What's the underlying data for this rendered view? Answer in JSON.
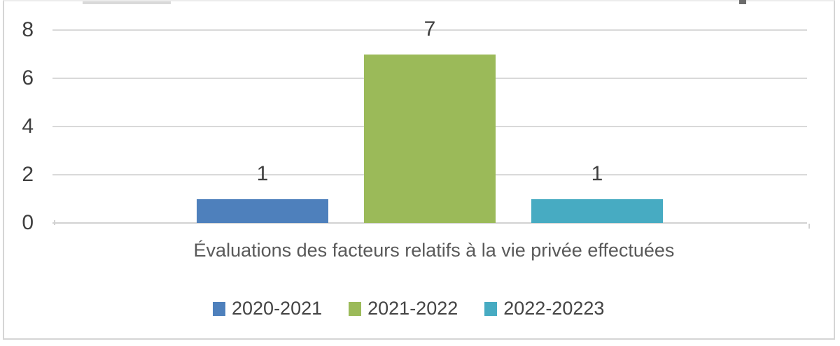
{
  "chart_data": {
    "type": "bar",
    "categories": [
      "Évaluations des facteurs relatifs à la vie privée effectuées"
    ],
    "series": [
      {
        "name": "2020-2021",
        "values": [
          1
        ],
        "color": "#4e80bc"
      },
      {
        "name": "2021-2022",
        "values": [
          7
        ],
        "color": "#9bba59"
      },
      {
        "name": "2022-20223",
        "values": [
          1
        ],
        "color": "#47abc2"
      }
    ],
    "data_labels": [
      "1",
      "7",
      "1"
    ],
    "title": "",
    "xlabel": "Évaluations des facteurs relatifs à la vie privée effectuées",
    "ylabel": "",
    "ylim": [
      0,
      8
    ],
    "yticks": [
      0,
      2,
      4,
      6,
      8
    ],
    "grid": true,
    "legend_position": "bottom",
    "colors": {
      "gridline": "#d9d9d9",
      "axis_line": "#d2d2d2",
      "tick_text": "#3f3f3f",
      "title_text": "#595959",
      "legend_text": "#444444",
      "frame_border": "#d5d5d5"
    }
  }
}
